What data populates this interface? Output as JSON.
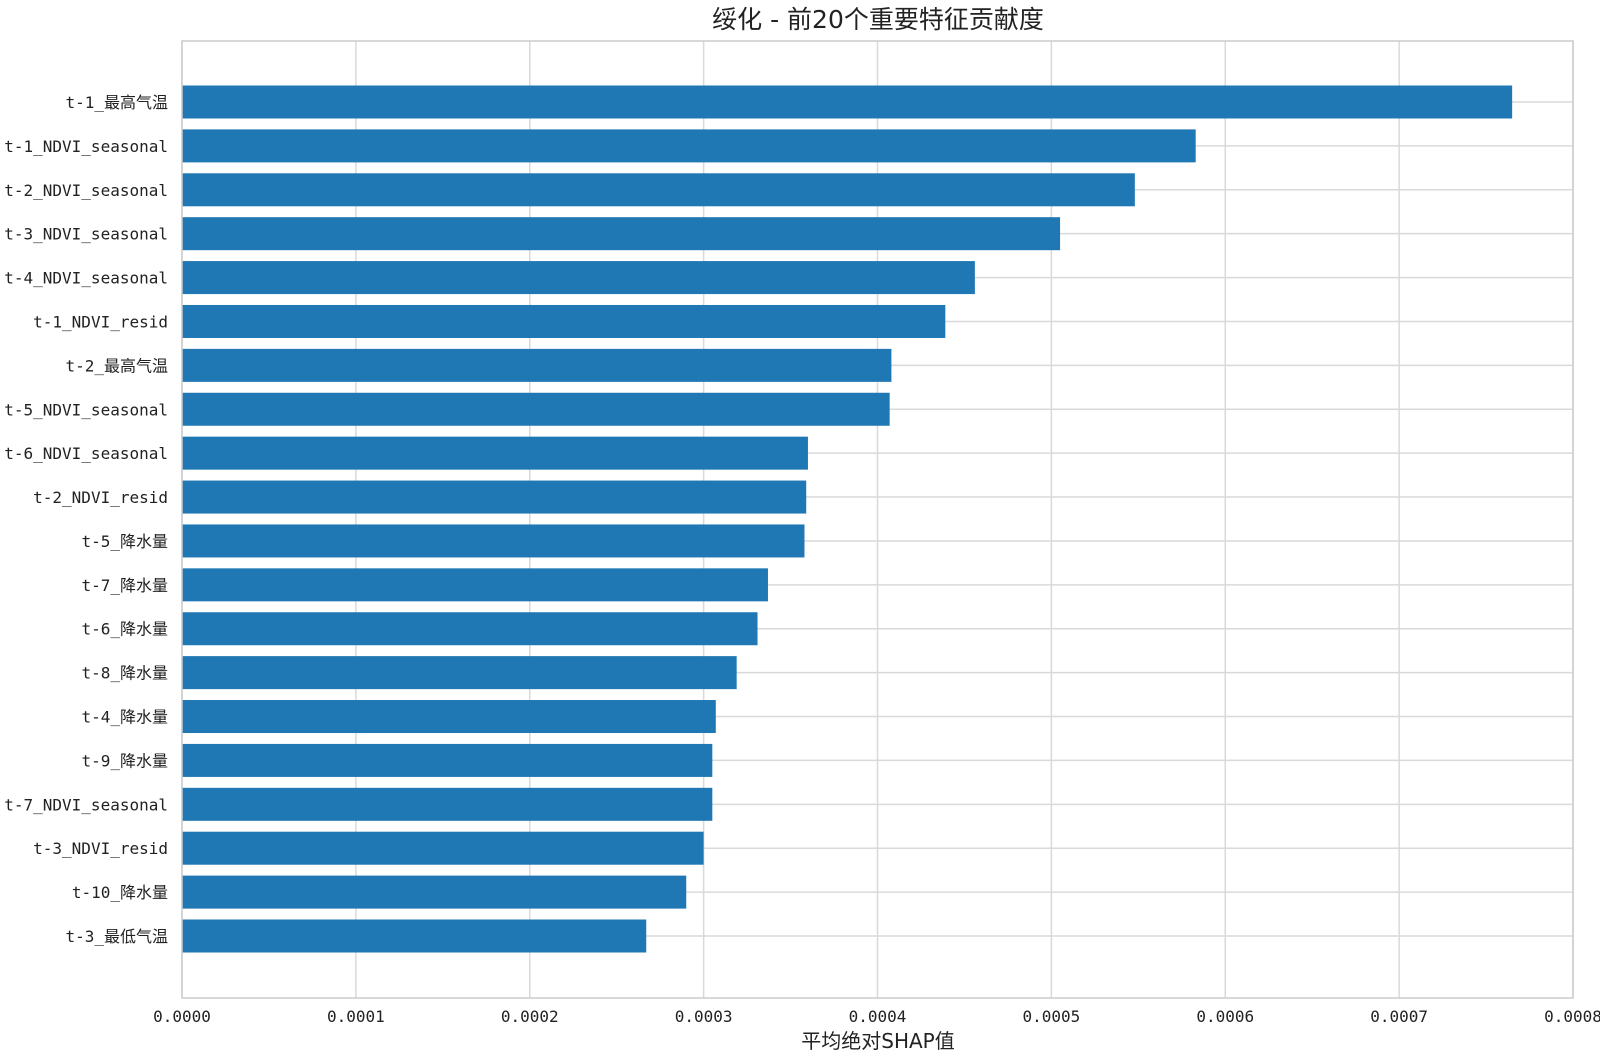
{
  "chart_data": {
    "type": "bar",
    "orientation": "horizontal",
    "title": "绥化 - 前20个重要特征贡献度",
    "xlabel": "平均绝对SHAP值",
    "ylabel": "",
    "xlim": [
      0,
      0.0008
    ],
    "xticks": [
      "0.0000",
      "0.0001",
      "0.0002",
      "0.0003",
      "0.0004",
      "0.0005",
      "0.0006",
      "0.0007",
      "0.0008"
    ],
    "grid": true,
    "bar_color": "#1f77b4",
    "categories": [
      "t-1_最高气温",
      "t-1_NDVI_seasonal",
      "t-2_NDVI_seasonal",
      "t-3_NDVI_seasonal",
      "t-4_NDVI_seasonal",
      "t-1_NDVI_resid",
      "t-2_最高气温",
      "t-5_NDVI_seasonal",
      "t-6_NDVI_seasonal",
      "t-2_NDVI_resid",
      "t-5_降水量",
      "t-7_降水量",
      "t-6_降水量",
      "t-8_降水量",
      "t-4_降水量",
      "t-9_降水量",
      "t-7_NDVI_seasonal",
      "t-3_NDVI_resid",
      "t-10_降水量",
      "t-3_最低气温"
    ],
    "values": [
      0.000765,
      0.000583,
      0.000548,
      0.000505,
      0.000456,
      0.000439,
      0.000408,
      0.000407,
      0.00036,
      0.000359,
      0.000358,
      0.000337,
      0.000331,
      0.000319,
      0.000307,
      0.000305,
      0.000305,
      0.0003,
      0.00029,
      0.000267
    ]
  }
}
